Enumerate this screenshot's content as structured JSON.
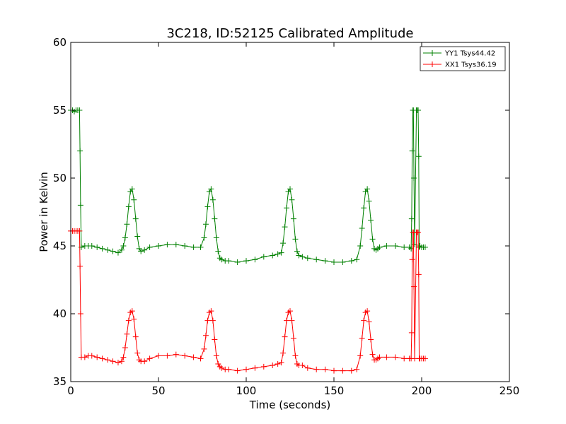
{
  "chart_data": {
    "type": "line",
    "title": "3C218, ID:52125 Calibrated Amplitude",
    "xlabel": "Time (seconds)",
    "ylabel": "Power in Kelvin",
    "xlim": [
      0,
      250
    ],
    "ylim": [
      35,
      60
    ],
    "xticks": [
      "0",
      "50",
      "100",
      "150",
      "200",
      "250"
    ],
    "yticks": [
      "35",
      "40",
      "45",
      "50",
      "55",
      "60"
    ],
    "grid": false,
    "legend_position": "top-right",
    "marker": "+",
    "series": [
      {
        "name": "YY1 Tsys44.42",
        "color": "#008000",
        "x": [
          0,
          1,
          2,
          3,
          4,
          5,
          5.3,
          5.6,
          6,
          8,
          10,
          12,
          15,
          18,
          21,
          24,
          27,
          29,
          30,
          31,
          32,
          33,
          34,
          35,
          36,
          37,
          38,
          39,
          40,
          42,
          45,
          50,
          55,
          60,
          65,
          70,
          74,
          76,
          77,
          78,
          79,
          80,
          81,
          82,
          83,
          84,
          85,
          86,
          88,
          90,
          95,
          100,
          105,
          110,
          115,
          118,
          120,
          121,
          122,
          123,
          124,
          125,
          126,
          127,
          128,
          129,
          130,
          132,
          135,
          140,
          145,
          150,
          155,
          160,
          163,
          165,
          166,
          167,
          168,
          169,
          170,
          171,
          172,
          173,
          174,
          175,
          176,
          180,
          185,
          190,
          193,
          194,
          194.3,
          194.6,
          195,
          195.3,
          195.6,
          196,
          197,
          197.5,
          198,
          198.3,
          198.6,
          199,
          200,
          201,
          202
        ],
        "y": [
          55.0,
          55.0,
          54.9,
          55.0,
          55.0,
          55.0,
          52.0,
          48.0,
          44.9,
          45.0,
          45.0,
          45.0,
          44.9,
          44.8,
          44.7,
          44.6,
          44.5,
          44.7,
          45.0,
          45.6,
          46.6,
          47.9,
          49.0,
          49.2,
          48.4,
          47.0,
          45.7,
          44.8,
          44.6,
          44.7,
          44.9,
          45.0,
          45.1,
          45.1,
          45.0,
          44.9,
          44.9,
          45.6,
          46.6,
          47.9,
          49.0,
          49.2,
          48.4,
          47.0,
          45.6,
          44.6,
          44.1,
          44.0,
          43.9,
          43.9,
          43.8,
          43.9,
          44.0,
          44.2,
          44.3,
          44.4,
          44.5,
          45.2,
          46.4,
          47.8,
          49.0,
          49.2,
          48.4,
          47.0,
          45.5,
          44.6,
          44.3,
          44.2,
          44.1,
          44.0,
          43.9,
          43.8,
          43.8,
          43.9,
          44.0,
          45.0,
          46.3,
          47.8,
          49.0,
          49.2,
          48.3,
          46.9,
          45.5,
          44.8,
          44.7,
          44.8,
          44.9,
          45.0,
          45.0,
          44.9,
          44.9,
          44.8,
          47.0,
          52.0,
          55.0,
          55.0,
          50.0,
          45.1,
          55.0,
          55.0,
          55.0,
          51.6,
          44.9,
          45.0,
          44.9,
          44.9,
          44.9
        ]
      },
      {
        "name": "XX1 Tsys36.19",
        "color": "#ff0000",
        "x": [
          0,
          1,
          2,
          3,
          4,
          5,
          5.3,
          5.6,
          6,
          8,
          10,
          12,
          15,
          18,
          21,
          24,
          27,
          29,
          30,
          31,
          32,
          33,
          34,
          35,
          36,
          37,
          38,
          39,
          40,
          42,
          45,
          50,
          55,
          60,
          65,
          70,
          74,
          76,
          77,
          78,
          79,
          80,
          81,
          82,
          83,
          84,
          85,
          86,
          88,
          90,
          95,
          100,
          105,
          110,
          115,
          118,
          120,
          121,
          122,
          123,
          124,
          125,
          126,
          127,
          128,
          129,
          130,
          132,
          135,
          140,
          145,
          150,
          155,
          160,
          163,
          165,
          166,
          167,
          168,
          169,
          170,
          171,
          172,
          173,
          174,
          175,
          176,
          180,
          185,
          190,
          193,
          194,
          194.3,
          194.6,
          195,
          195.3,
          195.6,
          196,
          197,
          197.5,
          198,
          198.3,
          198.6,
          199,
          200,
          201,
          202
        ],
        "y": [
          46.1,
          46.1,
          46.1,
          46.1,
          46.1,
          46.1,
          43.5,
          40.0,
          36.8,
          36.8,
          36.9,
          36.9,
          36.8,
          36.7,
          36.6,
          36.5,
          36.4,
          36.5,
          36.8,
          37.5,
          38.5,
          39.5,
          40.1,
          40.2,
          39.6,
          38.3,
          37.1,
          36.6,
          36.5,
          36.5,
          36.7,
          36.9,
          36.9,
          37.0,
          36.9,
          36.8,
          36.7,
          37.4,
          38.4,
          39.5,
          40.1,
          40.2,
          39.5,
          38.1,
          36.9,
          36.3,
          36.1,
          36.0,
          35.9,
          35.9,
          35.8,
          35.9,
          36.0,
          36.1,
          36.2,
          36.3,
          36.4,
          37.1,
          38.3,
          39.5,
          40.1,
          40.2,
          39.5,
          38.2,
          36.9,
          36.3,
          36.2,
          36.2,
          36.0,
          35.9,
          35.9,
          35.8,
          35.8,
          35.8,
          35.9,
          36.9,
          38.2,
          39.5,
          40.1,
          40.2,
          39.4,
          38.1,
          37.0,
          36.6,
          36.6,
          36.7,
          36.8,
          36.8,
          36.8,
          36.7,
          36.7,
          36.7,
          38.6,
          44.0,
          46.0,
          46.0,
          42.0,
          36.7,
          46.0,
          46.0,
          46.0,
          42.9,
          36.7,
          36.7,
          36.7,
          36.7,
          36.7
        ]
      }
    ]
  }
}
